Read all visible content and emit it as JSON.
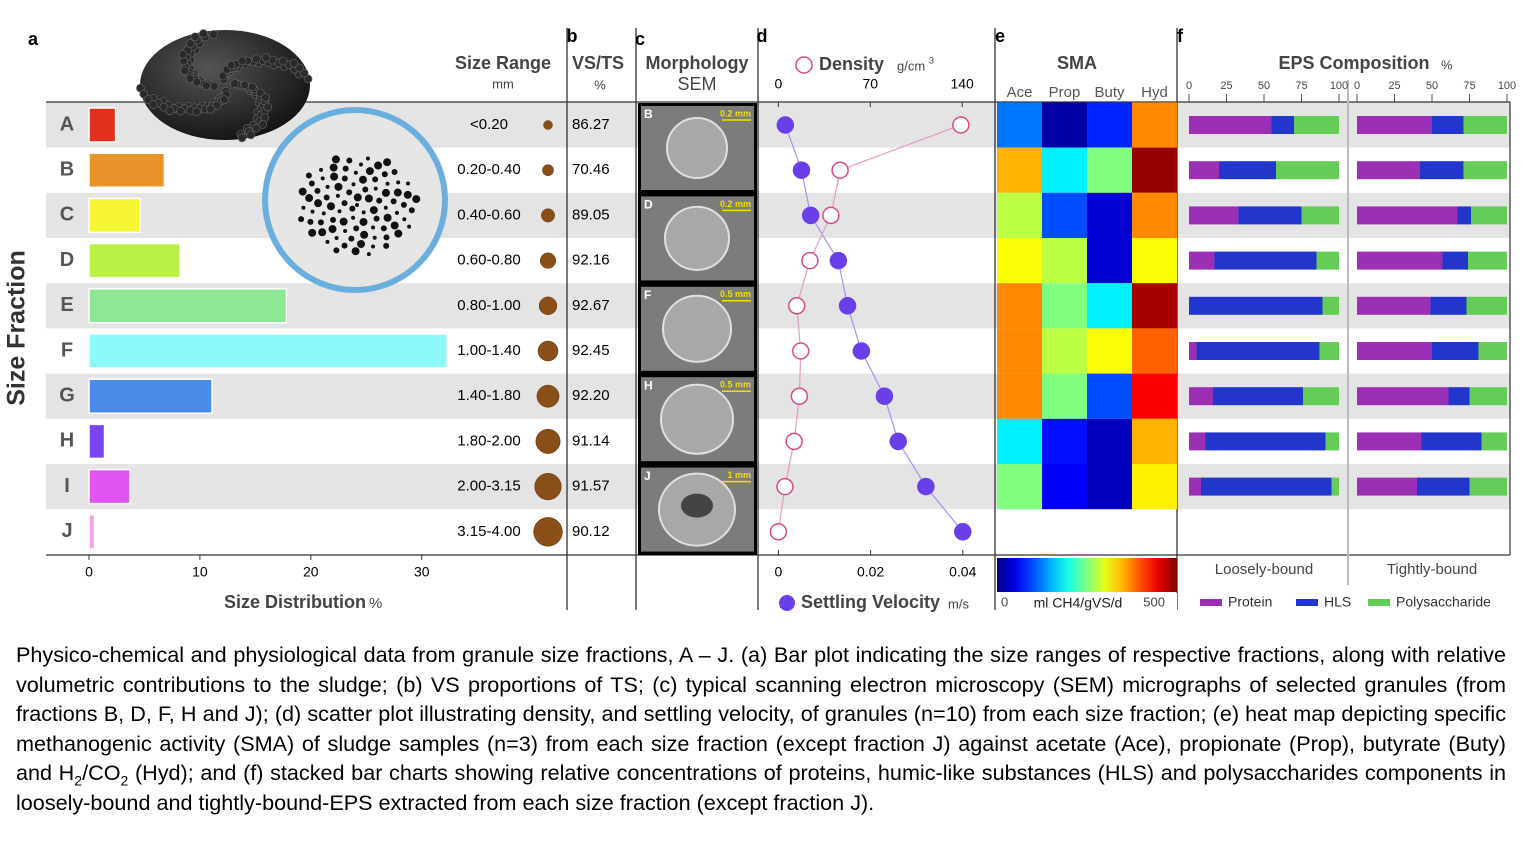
{
  "panel_labels": [
    "a",
    "b",
    "c",
    "d",
    "e",
    "f"
  ],
  "fractions": [
    "A",
    "B",
    "C",
    "D",
    "E",
    "F",
    "G",
    "H",
    "I",
    "J"
  ],
  "y_axis_label": "Size Fraction",
  "size_distribution": {
    "type": "bar",
    "title": "Size Distribution",
    "unit": "%",
    "values": [
      2.4,
      6.8,
      4.6,
      8.2,
      17.8,
      32.3,
      11.1,
      1.4,
      3.7,
      0.5
    ],
    "colors": [
      "#e0321a",
      "#e8922a",
      "#f5f534",
      "#b8f044",
      "#8ce894",
      "#8cf8f8",
      "#4a8ae8",
      "#7a44f0",
      "#e054f0",
      "#f0a4e0"
    ],
    "xlim": [
      0,
      33
    ],
    "xticks": [
      0,
      10,
      20,
      30
    ]
  },
  "size_range": {
    "title": "Size Range",
    "unit": "mm",
    "values": [
      "<0.20",
      "0.20-0.40",
      "0.40-0.60",
      "0.60-0.80",
      "0.80-1.00",
      "1.00-1.40",
      "1.40-1.80",
      "1.80-2.00",
      "2.00-3.15",
      "3.15-4.00"
    ]
  },
  "vs_ts": {
    "title": "VS/TS",
    "unit": "%",
    "values": [
      86.27,
      70.46,
      89.05,
      92.16,
      92.67,
      92.45,
      92.2,
      91.14,
      91.57,
      90.12
    ]
  },
  "morphology": {
    "title": "Morphology",
    "subtitle": "SEM",
    "images": [
      {
        "label": "B",
        "scale": "0.2 mm"
      },
      {
        "label": "D",
        "scale": "0.2 mm"
      },
      {
        "label": "F",
        "scale": "0.5 mm"
      },
      {
        "label": "H",
        "scale": "0.5 mm"
      },
      {
        "label": "J",
        "scale": "1 mm"
      }
    ]
  },
  "density": {
    "type": "scatter",
    "title": "Density",
    "unit": "g/cm",
    "unit_sup": "3",
    "values": [
      139,
      47,
      40,
      24,
      14,
      17,
      16,
      12,
      5,
      0
    ],
    "xlim": [
      -14,
      165
    ],
    "xticks": [
      0,
      70,
      140
    ],
    "color": "#d9488a"
  },
  "settling_velocity": {
    "type": "scatter",
    "title": "Settling Velocity",
    "unit": "m/s",
    "values": [
      0.0015,
      0.005,
      0.007,
      0.013,
      0.015,
      0.018,
      0.023,
      0.026,
      0.032,
      0.04
    ],
    "xlim": [
      -0.004,
      0.047
    ],
    "xticks": [
      0,
      0.02,
      0.04
    ],
    "color": "#6a3ee8"
  },
  "sma": {
    "type": "heatmap",
    "title": "SMA",
    "substrates": [
      "Ace",
      "Prop",
      "Buty",
      "Hyd"
    ],
    "values": [
      [
        120,
        20,
        80,
        370
      ],
      [
        350,
        180,
        250,
        490
      ],
      [
        280,
        100,
        40,
        370
      ],
      [
        310,
        280,
        40,
        310
      ],
      [
        370,
        250,
        180,
        480
      ],
      [
        370,
        280,
        310,
        390
      ],
      [
        370,
        250,
        100,
        440
      ],
      [
        180,
        70,
        30,
        350
      ],
      [
        250,
        60,
        30,
        320
      ]
    ],
    "colormap": "jet",
    "range": [
      0,
      500
    ],
    "colorbar_ticks": [
      0,
      500
    ],
    "colorbar_label": "ml CH4/gVS/d"
  },
  "eps": {
    "type": "stacked_bar",
    "title": "EPS Composition",
    "unit": "%",
    "components": [
      {
        "name": "Protein",
        "color": "#9b30b4"
      },
      {
        "name": "HLS",
        "color": "#2236cc"
      },
      {
        "name": "Polysaccharide",
        "color": "#66cc58"
      }
    ],
    "xlim": [
      0,
      100
    ],
    "xticks": [
      0,
      25,
      50,
      75,
      100
    ],
    "panels": [
      {
        "name": "Loosely-bound",
        "values": [
          [
            55,
            15,
            30
          ],
          [
            20,
            38,
            42
          ],
          [
            33,
            42,
            25
          ],
          [
            17,
            68,
            15
          ],
          [
            0,
            89,
            11
          ],
          [
            5,
            82,
            13
          ],
          [
            16,
            60,
            24
          ],
          [
            11,
            80,
            9
          ],
          [
            8,
            87,
            5
          ]
        ]
      },
      {
        "name": "Tightly-bound",
        "values": [
          [
            50,
            21,
            29
          ],
          [
            42,
            29,
            29
          ],
          [
            67,
            9,
            24
          ],
          [
            57,
            17,
            26
          ],
          [
            49,
            24,
            27
          ],
          [
            50,
            31,
            19
          ],
          [
            61,
            14,
            25
          ],
          [
            43,
            40,
            17
          ],
          [
            40,
            35,
            25
          ]
        ]
      }
    ]
  },
  "caption": [
    "Physico-chemical and physiological data from granule size fractions, A – J. (a) Bar plot indicating the size ranges of respective fractions, along with relative volumetric contributions to the sludge; (b) VS proportions of TS; (c) typical scanning electron microscopy (SEM) micrographs of selected granules (from fractions B, D, F, H and J); (d) scatter plot illustrating density, and settling velocity, of granules (n=10) from each size fraction; (e) heat map depicting specific methanogenic activity (SMA) of sludge samples (n=3) from each size fraction (except fraction J) against acetate (Ace), propionate (Prop), butyrate (Buty) and H",
    "2",
    "/CO",
    "2",
    " (Hyd); and (f) stacked bar charts showing relative concentrations of proteins, humic-like substances (HLS) and polysaccharides components in loosely-bound and tightly-bound-EPS extracted from each size fraction (except fraction J)."
  ]
}
